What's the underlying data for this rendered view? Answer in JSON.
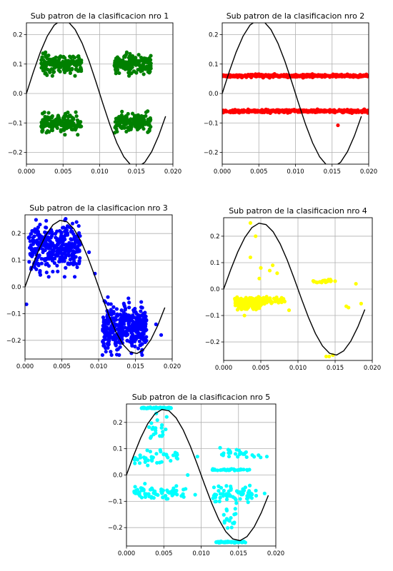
{
  "figure": {
    "background": "#ffffff",
    "sine_color": "#000000"
  },
  "chart_data": [
    {
      "type": "scatter",
      "title": "Sub patron de la clasificacion nro 1",
      "color": "#008000",
      "xlim": [
        0,
        0.02
      ],
      "ylim": [
        -0.24,
        0.24
      ],
      "xticks": [
        0,
        0.005,
        0.01,
        0.015,
        0.02
      ],
      "xtick_labels": [
        "0.000",
        "0.005",
        "0.010",
        "0.015",
        "0.020"
      ],
      "yticks": [
        -0.2,
        -0.1,
        0.0,
        0.1,
        0.2
      ],
      "ytick_labels": [
        "−0.2",
        "−0.1",
        "0.0",
        "0.1",
        "0.2"
      ],
      "grid": true,
      "reference_curve": {
        "type": "sine",
        "amplitude": 0.25,
        "frequency_hz": 50,
        "x_range": [
          0,
          0.019
        ]
      },
      "clusters": [
        {
          "x_range": [
            0.002,
            0.0075
          ],
          "y_center": 0.1,
          "y_spread": 0.025,
          "count": 170
        },
        {
          "x_range": [
            0.012,
            0.017
          ],
          "y_center": 0.1,
          "y_spread": 0.025,
          "count": 170
        },
        {
          "x_range": [
            0.002,
            0.0075
          ],
          "y_center": -0.1,
          "y_spread": 0.025,
          "count": 170
        },
        {
          "x_range": [
            0.012,
            0.017
          ],
          "y_center": -0.1,
          "y_spread": 0.025,
          "count": 170
        }
      ],
      "points": []
    },
    {
      "type": "scatter",
      "title": "Sub patron de la clasificacion nro 2",
      "color": "#ff0000",
      "xlim": [
        0,
        0.02
      ],
      "ylim": [
        -0.24,
        0.24
      ],
      "xticks": [
        0,
        0.005,
        0.01,
        0.015,
        0.02
      ],
      "xtick_labels": [
        "0.000",
        "0.005",
        "0.010",
        "0.015",
        "0.020"
      ],
      "yticks": [
        -0.2,
        -0.1,
        0.0,
        0.1,
        0.2
      ],
      "ytick_labels": [
        "−0.2",
        "−0.1",
        "0.0",
        "0.1",
        "0.2"
      ],
      "grid": true,
      "reference_curve": {
        "type": "sine",
        "amplitude": 0.25,
        "frequency_hz": 50,
        "x_range": [
          0,
          0.019
        ]
      },
      "clusters": [
        {
          "x_range": [
            0,
            0.02
          ],
          "y_center": 0.06,
          "y_spread": 0.004,
          "count": 420
        },
        {
          "x_range": [
            0,
            0.02
          ],
          "y_center": -0.06,
          "y_spread": 0.004,
          "count": 420
        }
      ],
      "points": [
        [
          0.0158,
          -0.108
        ]
      ]
    },
    {
      "type": "scatter",
      "title": "Sub patron de la clasificacion nro 3",
      "color": "#0000ff",
      "xlim": [
        0,
        0.02
      ],
      "ylim": [
        -0.27,
        0.27
      ],
      "xticks": [
        0,
        0.005,
        0.01,
        0.015,
        0.02
      ],
      "xtick_labels": [
        "0.000",
        "0.005",
        "0.010",
        "0.015",
        "0.020"
      ],
      "yticks": [
        -0.2,
        -0.1,
        0.0,
        0.1,
        0.2
      ],
      "ytick_labels": [
        "−0.2",
        "−0.1",
        "0.0",
        "0.1",
        "0.2"
      ],
      "grid": true,
      "reference_curve": {
        "type": "sine",
        "amplitude": 0.25,
        "frequency_hz": 50,
        "x_range": [
          0,
          0.019
        ]
      },
      "clusters": [
        {
          "x_range": [
            0.0005,
            0.0075
          ],
          "y_center": 0.15,
          "y_spread": 0.07,
          "count": 380,
          "y_clip": [
            -0.01,
            0.255
          ]
        },
        {
          "x_range": [
            0.0105,
            0.0165
          ],
          "y_center": -0.15,
          "y_spread": 0.07,
          "count": 380,
          "y_clip": [
            -0.255,
            0.01
          ]
        }
      ],
      "points": [
        [
          0.0002,
          -0.065
        ],
        [
          0.0087,
          0.13
        ],
        [
          0.0095,
          0.05
        ],
        [
          0.0185,
          -0.18
        ],
        [
          0.0178,
          -0.14
        ],
        [
          0.0115,
          -0.1
        ]
      ]
    },
    {
      "type": "scatter",
      "title": "Sub patron de la clasificacion nro 4",
      "color": "#ffff00",
      "xlim": [
        0,
        0.02
      ],
      "ylim": [
        -0.27,
        0.27
      ],
      "xticks": [
        0,
        0.005,
        0.01,
        0.015,
        0.02
      ],
      "xtick_labels": [
        "0.000",
        "0.005",
        "0.010",
        "0.015",
        "0.020"
      ],
      "yticks": [
        -0.2,
        -0.1,
        0.0,
        0.1,
        0.2
      ],
      "ytick_labels": [
        "−0.2",
        "−0.1",
        "0.0",
        "0.1",
        "0.2"
      ],
      "grid": true,
      "reference_curve": {
        "type": "sine",
        "amplitude": 0.25,
        "frequency_hz": 50,
        "x_range": [
          0,
          0.019
        ]
      },
      "clusters": [
        {
          "x_range": [
            0.0015,
            0.005
          ],
          "y_center": -0.055,
          "y_spread": 0.018,
          "count": 200
        },
        {
          "x_range": [
            0.005,
            0.0085
          ],
          "y_center": -0.045,
          "y_spread": 0.01,
          "count": 40
        },
        {
          "x_range": [
            0.012,
            0.0145
          ],
          "y_center": 0.03,
          "y_spread": 0.006,
          "count": 25
        }
      ],
      "points": [
        [
          0.0036,
          0.25
        ],
        [
          0.0036,
          0.12
        ],
        [
          0.0043,
          0.2
        ],
        [
          0.005,
          0.08
        ],
        [
          0.0062,
          0.07
        ],
        [
          0.0072,
          0.06
        ],
        [
          0.0048,
          0.04
        ],
        [
          0.0066,
          0.09
        ],
        [
          0.0142,
          -0.255
        ],
        [
          0.0147,
          -0.25
        ],
        [
          0.0138,
          -0.255
        ],
        [
          0.0165,
          -0.065
        ],
        [
          0.0168,
          -0.07
        ],
        [
          0.0185,
          -0.055
        ],
        [
          0.0178,
          0.02
        ],
        [
          0.015,
          0.03
        ],
        [
          0.0088,
          -0.08
        ],
        [
          0.0078,
          -0.05
        ],
        [
          0.0028,
          -0.1
        ]
      ]
    },
    {
      "type": "scatter",
      "title": "Sub patron de la clasificacion nro 5",
      "color": "#00ffff",
      "xlim": [
        0,
        0.02
      ],
      "ylim": [
        -0.27,
        0.27
      ],
      "xticks": [
        0,
        0.005,
        0.01,
        0.015,
        0.02
      ],
      "xtick_labels": [
        "0.000",
        "0.005",
        "0.010",
        "0.015",
        "0.020"
      ],
      "yticks": [
        -0.2,
        -0.1,
        0.0,
        0.1,
        0.2
      ],
      "ytick_labels": [
        "−0.2",
        "−0.1",
        "0.0",
        "0.1",
        "0.2"
      ],
      "grid": true,
      "reference_curve": {
        "type": "sine",
        "amplitude": 0.25,
        "frequency_hz": 50,
        "x_range": [
          0,
          0.019
        ]
      },
      "clusters": [
        {
          "x_range": [
            0.002,
            0.006
          ],
          "y_center": 0.255,
          "y_spread": 0.002,
          "count": 60
        },
        {
          "x_range": [
            0.012,
            0.016
          ],
          "y_center": -0.255,
          "y_spread": 0.002,
          "count": 60
        },
        {
          "x_range": [
            0.001,
            0.008
          ],
          "y_center": -0.065,
          "y_spread": 0.02,
          "count": 70
        },
        {
          "x_range": [
            0.001,
            0.007
          ],
          "y_center": 0.07,
          "y_spread": 0.03,
          "count": 40
        },
        {
          "x_range": [
            0.003,
            0.0055
          ],
          "y_center": 0.17,
          "y_spread": 0.04,
          "count": 20
        },
        {
          "x_range": [
            0.0115,
            0.0175
          ],
          "y_center": -0.075,
          "y_spread": 0.025,
          "count": 70
        },
        {
          "x_range": [
            0.0115,
            0.0165
          ],
          "y_center": 0.02,
          "y_spread": 0.003,
          "count": 35
        },
        {
          "x_range": [
            0.0125,
            0.018
          ],
          "y_center": 0.08,
          "y_spread": 0.02,
          "count": 25
        },
        {
          "x_range": [
            0.013,
            0.015
          ],
          "y_center": -0.17,
          "y_spread": 0.04,
          "count": 18
        }
      ],
      "points": [
        [
          0.0188,
          0.07
        ],
        [
          0.0185,
          -0.07
        ],
        [
          0.0095,
          0.07
        ],
        [
          0.0092,
          -0.075
        ],
        [
          0.0082,
          0.0
        ]
      ]
    }
  ]
}
